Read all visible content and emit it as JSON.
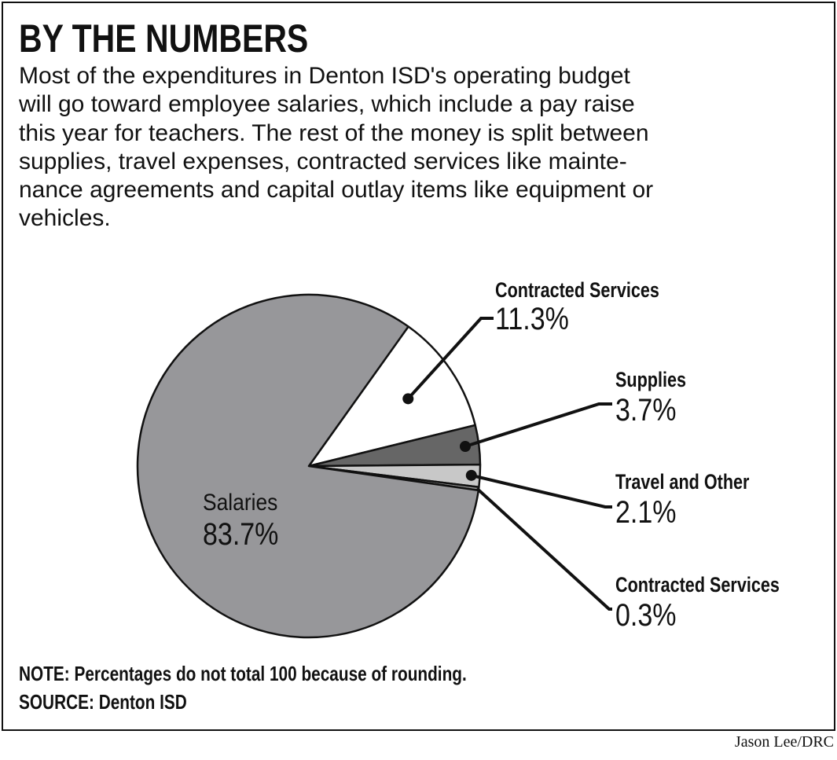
{
  "header": {
    "title": "BY THE NUMBERS",
    "description_lines": [
      "Most of the expenditures in Denton ISD's operating budget",
      "will go toward employee salaries, which include a pay raise",
      "this year for teachers. The rest of the money is split between",
      "supplies, travel expenses, contracted services like mainte-",
      "nance agreements and capital outlay items like equipment or",
      "vehicles."
    ]
  },
  "chart_data": {
    "type": "pie",
    "title": "BY THE NUMBERS",
    "slices": [
      {
        "label": "Contracted Services",
        "value": 11.3,
        "display": "11.3%",
        "color": "#ffffff"
      },
      {
        "label": "Supplies",
        "value": 3.7,
        "display": "3.7%",
        "color": "#666666"
      },
      {
        "label": "Travel and Other",
        "value": 2.1,
        "display": "2.1%",
        "color": "#c8c8c8"
      },
      {
        "label": "Contracted Services",
        "value": 0.3,
        "display": "0.3%",
        "color": "#999999"
      },
      {
        "label": "Salaries",
        "value": 83.7,
        "display": "83.7%",
        "color": "#97979a"
      }
    ]
  },
  "footer": {
    "note": "NOTE: Percentages do not total 100 because of rounding.",
    "source": "SOURCE: Denton ISD",
    "credit": "Jason Lee/DRC"
  }
}
